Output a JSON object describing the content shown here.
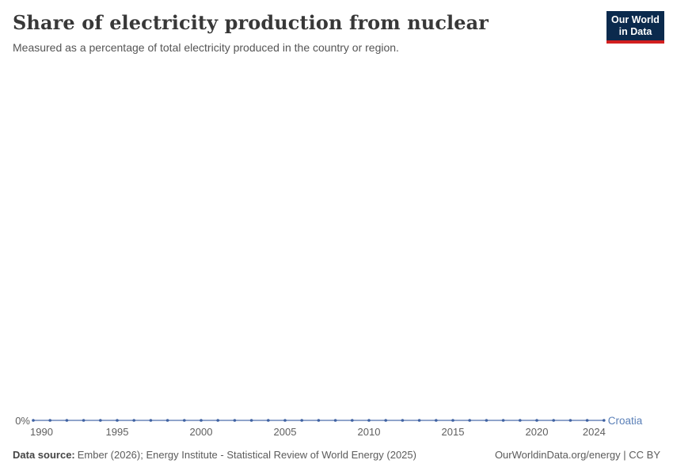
{
  "header": {
    "title": "Share of electricity production from nuclear",
    "subtitle": "Measured as a percentage of total electricity produced in the country or region.",
    "logo": {
      "line1": "Our World",
      "line2": "in Data",
      "bg_color": "#0b2a4d",
      "accent_color": "#d21f1f"
    }
  },
  "chart_data": {
    "type": "line",
    "title": "Share of electricity production from nuclear",
    "xlabel": "",
    "ylabel": "",
    "x": [
      1990,
      1991,
      1992,
      1993,
      1994,
      1995,
      1996,
      1997,
      1998,
      1999,
      2000,
      2001,
      2002,
      2003,
      2004,
      2005,
      2006,
      2007,
      2008,
      2009,
      2010,
      2011,
      2012,
      2013,
      2014,
      2015,
      2016,
      2017,
      2018,
      2019,
      2020,
      2021,
      2022,
      2023,
      2024
    ],
    "series": [
      {
        "name": "Croatia",
        "values": [
          0,
          0,
          0,
          0,
          0,
          0,
          0,
          0,
          0,
          0,
          0,
          0,
          0,
          0,
          0,
          0,
          0,
          0,
          0,
          0,
          0,
          0,
          0,
          0,
          0,
          0,
          0,
          0,
          0,
          0,
          0,
          0,
          0,
          0,
          0
        ],
        "line_color": "#6b85ba",
        "marker_color": "#3f62a2",
        "label_color": "#5b80b8"
      }
    ],
    "x_ticks": [
      1990,
      1995,
      2000,
      2005,
      2010,
      2015,
      2020,
      2024
    ],
    "y_ticks": [
      "0%"
    ],
    "ylim": [
      0,
      0
    ],
    "grid": false,
    "legend_position": "end-of-line",
    "axis_text_color": "#5e5e5e",
    "markers": true
  },
  "footer": {
    "datasource_label": "Data source:",
    "datasource_text": "Ember (2026); Energy Institute - Statistical Review of World Energy (2025)",
    "link_text": "OurWorldinData.org/energy | CC BY"
  }
}
